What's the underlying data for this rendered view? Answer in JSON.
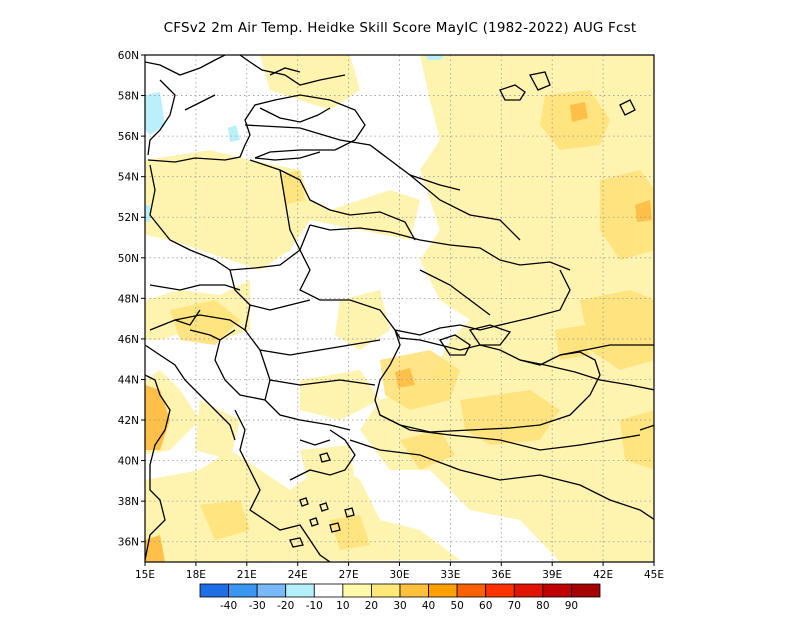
{
  "title": "CFSv2  2m Air Temp. Heidke Skill Score MayIC (1982-2022) AUG Fcst",
  "map": {
    "lon_range": [
      15,
      45
    ],
    "lat_range": [
      35,
      60
    ],
    "lat_labels": [
      "60N",
      "58N",
      "56N",
      "54N",
      "52N",
      "50N",
      "48N",
      "46N",
      "44N",
      "42N",
      "40N",
      "38N",
      "36N"
    ],
    "lat_values": [
      60,
      58,
      56,
      54,
      52,
      50,
      48,
      46,
      44,
      42,
      40,
      38,
      36
    ],
    "lon_labels": [
      "15E",
      "18E",
      "21E",
      "24E",
      "27E",
      "30E",
      "33E",
      "36E",
      "39E",
      "42E",
      "45E"
    ],
    "lon_values": [
      15,
      18,
      21,
      24,
      27,
      30,
      33,
      36,
      39,
      42,
      45
    ],
    "gridlines": "dotted"
  },
  "colorbar": {
    "colors": [
      "#1e6fe6",
      "#3c96f0",
      "#78b9fa",
      "#b4f0fa",
      "#ffffff",
      "#fffaaa",
      "#ffe878",
      "#ffc03c",
      "#ffa000",
      "#ff6000",
      "#ff3200",
      "#e11400",
      "#c00000",
      "#a50000"
    ],
    "labels": [
      "-40",
      "-30",
      "-20",
      "-10",
      "10",
      "20",
      "30",
      "40",
      "50",
      "60",
      "70",
      "80",
      "90"
    ]
  },
  "shading": {
    "light_yellow": "#fff3b0",
    "yellow": "#ffe27a",
    "orange": "#ffc04a",
    "light_blue": "#b9f0fa"
  }
}
